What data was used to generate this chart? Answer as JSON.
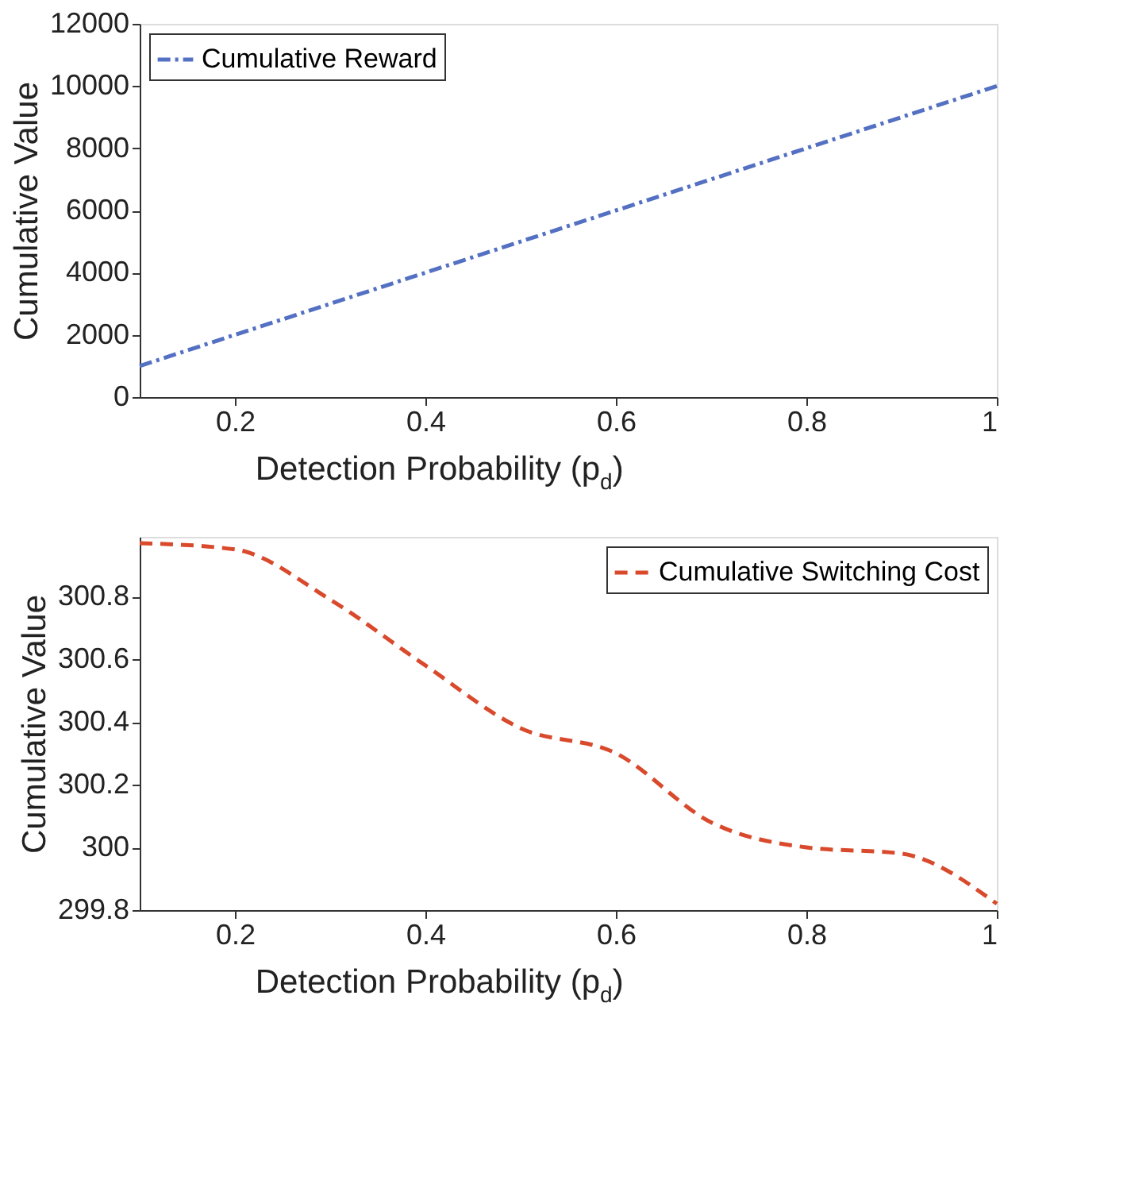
{
  "chart_data": [
    {
      "type": "line",
      "xlabel": "Detection Probability (p$_{d}$)",
      "ylabel": "Cumulative Value",
      "x": [
        0.1,
        0.2,
        0.3,
        0.4,
        0.5,
        0.6,
        0.7,
        0.8,
        0.9,
        1.0
      ],
      "series": [
        {
          "name": "Cumulative Reward",
          "color": "#5470c2",
          "line_style": "dashdot",
          "values": [
            1000,
            2000,
            3000,
            4000,
            5000,
            6000,
            7000,
            8000,
            9000,
            10000
          ]
        }
      ],
      "xlim": [
        0.1,
        1
      ],
      "xticks": [
        0.2,
        0.4,
        0.6,
        0.8,
        1
      ],
      "ylim": [
        0,
        12000
      ],
      "yticks": [
        0,
        2000,
        4000,
        6000,
        8000,
        10000,
        12000
      ],
      "grid": false,
      "legend": "top left",
      "marker": "none"
    },
    {
      "type": "line",
      "xlabel": "Detection Probability (p$_{d}$)",
      "ylabel": "Cumulative Value",
      "x": [
        0.1,
        0.2,
        0.3,
        0.4,
        0.5,
        0.6,
        0.7,
        0.8,
        0.9,
        1.0
      ],
      "series": [
        {
          "name": "Cumulative Switching Cost",
          "color": "#d94a2c",
          "line_style": "dashed",
          "values": [
            300.97,
            300.95,
            300.79,
            300.58,
            300.38,
            300.3,
            300.08,
            300.0,
            299.98,
            299.82
          ]
        }
      ],
      "xlim": [
        0.1,
        1
      ],
      "xticks": [
        0.2,
        0.4,
        0.6,
        0.8,
        1
      ],
      "ylim": [
        299.8,
        300.99
      ],
      "yticks": [
        299.8,
        300,
        300.2,
        300.4,
        300.6,
        300.8
      ],
      "grid": false,
      "legend": "top right",
      "marker": "none"
    }
  ]
}
